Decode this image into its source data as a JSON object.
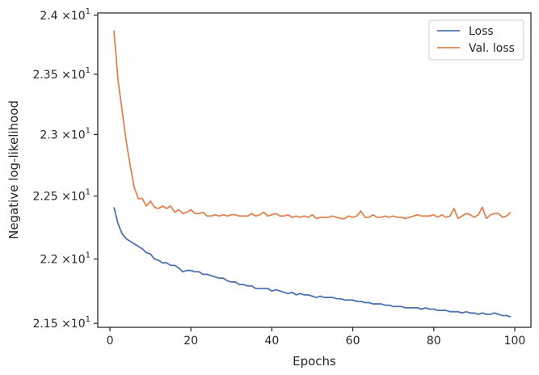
{
  "chart_data": {
    "type": "line",
    "xlabel": "Epochs",
    "ylabel": "Negative log-likelihood",
    "xlim": [
      -3,
      104
    ],
    "ylim": [
      21.47,
      24.02
    ],
    "y_scale": "log",
    "grid": false,
    "legend": "top-right",
    "x_ticks": [
      0,
      20,
      40,
      60,
      80,
      100
    ],
    "x_tick_labels": [
      "0",
      "20",
      "40",
      "60",
      "80",
      "100"
    ],
    "y_ticks": [
      {
        "value": 24.0,
        "mantissa": "2.4"
      },
      {
        "value": 23.5,
        "mantissa": "2.35"
      },
      {
        "value": 23.0,
        "mantissa": "2.3"
      },
      {
        "value": 22.5,
        "mantissa": "2.25"
      },
      {
        "value": 22.0,
        "mantissa": "2.2"
      },
      {
        "value": 21.5,
        "mantissa": "2.15"
      }
    ],
    "y_tick_suffix": "×10",
    "y_tick_exponent": "1",
    "x": [
      1,
      2,
      3,
      4,
      5,
      6,
      7,
      8,
      9,
      10,
      11,
      12,
      13,
      14,
      15,
      16,
      17,
      18,
      19,
      20,
      21,
      22,
      23,
      24,
      25,
      26,
      27,
      28,
      29,
      30,
      31,
      32,
      33,
      34,
      35,
      36,
      37,
      38,
      39,
      40,
      41,
      42,
      43,
      44,
      45,
      46,
      47,
      48,
      49,
      50,
      51,
      52,
      53,
      54,
      55,
      56,
      57,
      58,
      59,
      60,
      61,
      62,
      63,
      64,
      65,
      66,
      67,
      68,
      69,
      70,
      71,
      72,
      73,
      74,
      75,
      76,
      77,
      78,
      79,
      80,
      81,
      82,
      83,
      84,
      85,
      86,
      87,
      88,
      89,
      90,
      91,
      92,
      93,
      94,
      95,
      96,
      97,
      98,
      99
    ],
    "series": [
      {
        "name": "Loss",
        "color": "#4c72b0",
        "values": [
          22.41,
          22.28,
          22.2,
          22.16,
          22.14,
          22.12,
          22.1,
          22.08,
          22.05,
          22.04,
          22.0,
          21.99,
          21.97,
          21.97,
          21.95,
          21.95,
          21.93,
          21.9,
          21.91,
          21.91,
          21.9,
          21.9,
          21.88,
          21.88,
          21.87,
          21.86,
          21.85,
          21.85,
          21.83,
          21.82,
          21.82,
          21.8,
          21.8,
          21.79,
          21.79,
          21.77,
          21.77,
          21.77,
          21.77,
          21.75,
          21.76,
          21.75,
          21.74,
          21.73,
          21.74,
          21.72,
          21.73,
          21.72,
          21.72,
          21.71,
          21.7,
          21.71,
          21.7,
          21.7,
          21.7,
          21.69,
          21.69,
          21.68,
          21.68,
          21.68,
          21.67,
          21.67,
          21.66,
          21.66,
          21.65,
          21.65,
          21.65,
          21.64,
          21.64,
          21.63,
          21.63,
          21.63,
          21.62,
          21.62,
          21.62,
          21.62,
          21.61,
          21.62,
          21.61,
          21.61,
          21.6,
          21.6,
          21.6,
          21.59,
          21.59,
          21.59,
          21.58,
          21.59,
          21.58,
          21.58,
          21.57,
          21.58,
          21.57,
          21.57,
          21.58,
          21.57,
          21.56,
          21.56,
          21.55
        ]
      },
      {
        "name": "Val. loss",
        "color": "#dd8452",
        "values": [
          23.87,
          23.45,
          23.2,
          22.95,
          22.75,
          22.57,
          22.48,
          22.48,
          22.42,
          22.46,
          22.41,
          22.4,
          22.42,
          22.4,
          22.42,
          22.37,
          22.39,
          22.36,
          22.37,
          22.39,
          22.36,
          22.36,
          22.37,
          22.34,
          22.34,
          22.35,
          22.34,
          22.35,
          22.34,
          22.35,
          22.35,
          22.34,
          22.34,
          22.34,
          22.36,
          22.34,
          22.35,
          22.37,
          22.34,
          22.35,
          22.36,
          22.34,
          22.34,
          22.35,
          22.33,
          22.34,
          22.33,
          22.34,
          22.33,
          22.35,
          22.32,
          22.33,
          22.33,
          22.33,
          22.34,
          22.33,
          22.32,
          22.32,
          22.34,
          22.33,
          22.34,
          22.38,
          22.33,
          22.33,
          22.35,
          22.33,
          22.33,
          22.34,
          22.33,
          22.34,
          22.33,
          22.33,
          22.32,
          22.33,
          22.34,
          22.35,
          22.34,
          22.34,
          22.34,
          22.35,
          22.33,
          22.35,
          22.33,
          22.34,
          22.4,
          22.32,
          22.34,
          22.36,
          22.35,
          22.33,
          22.35,
          22.41,
          22.32,
          22.35,
          22.36,
          22.36,
          22.33,
          22.34,
          22.37
        ]
      }
    ]
  }
}
